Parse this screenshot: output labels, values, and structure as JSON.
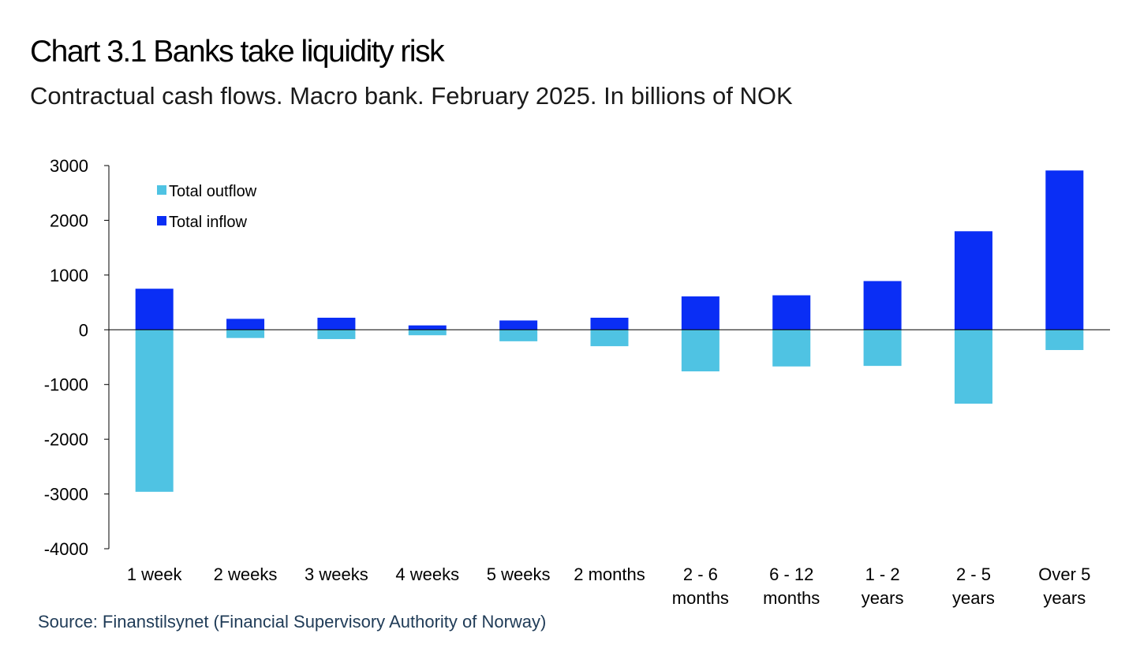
{
  "header": {
    "title": "Chart 3.1 Banks take liquidity risk",
    "subtitle": "Contractual cash flows. Macro bank. February 2025. In billions of NOK"
  },
  "footer": {
    "source": "Source: Finanstilsynet (Financial Supervisory Authority of Norway)"
  },
  "chart_data": {
    "type": "bar",
    "title": "Chart 3.1 Banks take liquidity risk",
    "subtitle": "Contractual cash flows. Macro bank. February 2025. In billions of NOK",
    "xlabel": "",
    "ylabel": "",
    "ylim": [
      -4000,
      3000
    ],
    "yticks": [
      3000,
      2000,
      1000,
      0,
      -1000,
      -2000,
      -3000,
      -4000
    ],
    "grid": false,
    "legend_position": "top-left",
    "categories": [
      [
        "1 week"
      ],
      [
        "2 weeks"
      ],
      [
        "3 weeks"
      ],
      [
        "4 weeks"
      ],
      [
        "5 weeks"
      ],
      [
        "2 months"
      ],
      [
        "2 - 6",
        "months"
      ],
      [
        "6 - 12",
        "months"
      ],
      [
        "1 - 2",
        "years"
      ],
      [
        "2 - 5",
        "years"
      ],
      [
        "Over 5",
        "years"
      ]
    ],
    "series": [
      {
        "name": "Total outflow",
        "color": "#4fc3e3",
        "values": [
          -2960,
          -150,
          -170,
          -100,
          -210,
          -300,
          -760,
          -670,
          -660,
          -1350,
          -370
        ]
      },
      {
        "name": "Total inflow",
        "color": "#0a2ef5",
        "values": [
          750,
          200,
          220,
          80,
          170,
          220,
          610,
          630,
          890,
          1800,
          2910
        ]
      }
    ]
  }
}
